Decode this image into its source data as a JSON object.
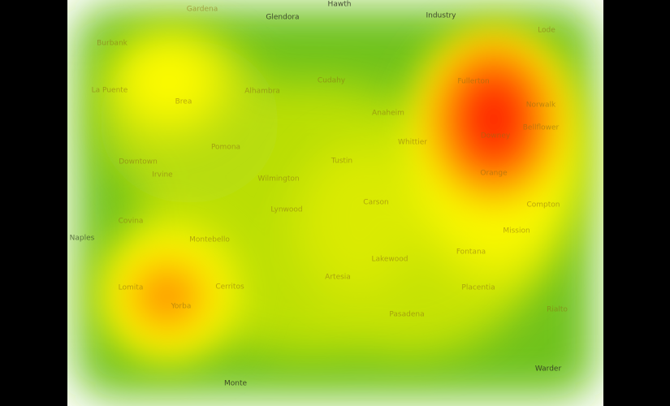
{
  "colors": {
    "background": "#000000",
    "map_base": "#ffffff",
    "low": "#5cbd12",
    "mid": "#f7f700",
    "high": "#ff1a00"
  },
  "map": {
    "labels": [
      "Gardena",
      "Glendora",
      "Hawth",
      "Industry",
      "Lode",
      "Burbank",
      "La Puente",
      "Alhambra",
      "Cudahy",
      "Anaheim",
      "Brea",
      "Fullerton",
      "Norwalk",
      "Bellflower",
      "Downey",
      "Whittier",
      "Pomona",
      "Downtown",
      "Irvine",
      "Tustin",
      "Orange",
      "Wilmington",
      "Carson",
      "Compton",
      "Lynwood",
      "Covina",
      "Mission",
      "Montebello",
      "Fontana",
      "Lakewood",
      "Artesia",
      "Lomita",
      "Cerritos",
      "Placentia",
      "Yorba",
      "Pasadena",
      "Monte",
      "Warder",
      "Naples",
      "Rialto"
    ]
  },
  "heat_data": {
    "type": "heatmap",
    "hotspots": [
      {
        "cx": 0.8,
        "cy": 0.31,
        "rx": 0.16,
        "ry": 0.25,
        "intensity": 1.0
      },
      {
        "cx": 0.19,
        "cy": 0.74,
        "rx": 0.12,
        "ry": 0.15,
        "intensity": 0.75
      },
      {
        "cx": 0.19,
        "cy": 0.2,
        "rx": 0.12,
        "ry": 0.13,
        "intensity": 0.45
      }
    ]
  }
}
